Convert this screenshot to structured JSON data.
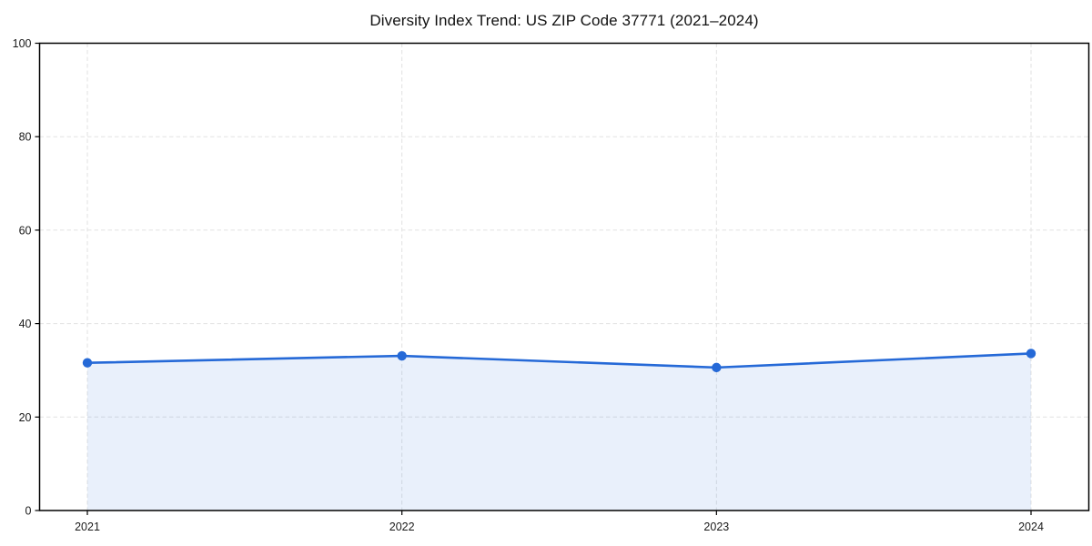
{
  "chart_data": {
    "type": "area",
    "title": "Diversity Index Trend: US ZIP Code 37771 (2021–2024)",
    "xlabel": "",
    "ylabel": "",
    "x": [
      2021,
      2022,
      2023,
      2024
    ],
    "xtick_labels": [
      "2021",
      "2022",
      "2023",
      "2024"
    ],
    "series": [
      {
        "name": "Diversity Index",
        "values": [
          31.6,
          33.1,
          30.6,
          33.6
        ]
      }
    ],
    "ylim": [
      0,
      100
    ],
    "yticks": [
      0,
      20,
      40,
      60,
      80,
      100
    ],
    "grid": "dashed-both-axes",
    "legend_position": "none",
    "colors": {
      "line": "#2569d7",
      "marker": "#2569d7",
      "fill": "#2569d7",
      "fill_opacity": 0.1,
      "grid": "#e2e2e2",
      "spine": "#000000",
      "tick_label": "#1a1a1a",
      "background": "#ffffff"
    }
  }
}
